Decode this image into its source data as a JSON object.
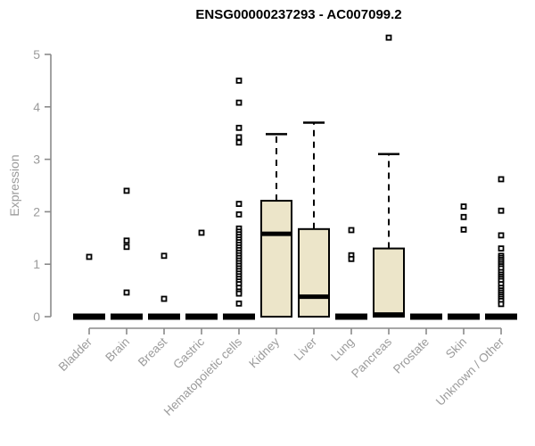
{
  "page": {
    "title": "ENSG00000237293 - AC007099.2"
  },
  "colors": {
    "box_fill": "#ece5c9",
    "box_stroke": "#000000",
    "median": "#000000",
    "axis": "#8a8a8a",
    "tick_label": "#9b9b9b",
    "title": "#000000",
    "outlier_fill": "#ffffff",
    "background": "#ffffff"
  },
  "chart_data": {
    "type": "boxplot",
    "title": "ENSG00000237293 - AC007099.2",
    "xlabel": "",
    "ylabel": "Expression",
    "ylim": [
      0,
      5.45
    ],
    "y_ticks": [
      0,
      1,
      2,
      3,
      4,
      5
    ],
    "grid": false,
    "legend": "none",
    "categories": [
      "Bladder",
      "Brain",
      "Breast",
      "Gastric",
      "Hematopoietic cells",
      "Kidney",
      "Liver",
      "Lung",
      "Pancreas",
      "Prostate",
      "Skin",
      "Unknown / Other"
    ],
    "series": [
      {
        "name": "Bladder",
        "q1": 0,
        "median": 0,
        "q3": 0,
        "whisker_low": 0,
        "whisker_high": 0,
        "outliers": [
          1.14
        ]
      },
      {
        "name": "Brain",
        "q1": 0,
        "median": 0,
        "q3": 0,
        "whisker_low": 0,
        "whisker_high": 0,
        "outliers": [
          2.4,
          1.45,
          1.33,
          0.46
        ]
      },
      {
        "name": "Breast",
        "q1": 0,
        "median": 0,
        "q3": 0,
        "whisker_low": 0,
        "whisker_high": 0,
        "outliers": [
          1.16,
          0.34
        ]
      },
      {
        "name": "Gastric",
        "q1": 0,
        "median": 0,
        "q3": 0,
        "whisker_low": 0,
        "whisker_high": 0,
        "outliers": [
          1.6
        ]
      },
      {
        "name": "Hematopoietic cells",
        "q1": 0,
        "median": 0,
        "q3": 0,
        "whisker_low": 0,
        "whisker_high": 0,
        "outliers": [
          4.5,
          4.08,
          3.6,
          3.42,
          3.32,
          2.15,
          1.95,
          1.68,
          1.62,
          1.57,
          1.52,
          1.47,
          1.42,
          1.37,
          1.32,
          1.27,
          1.22,
          1.17,
          1.12,
          1.07,
          1.02,
          0.97,
          0.92,
          0.87,
          0.82,
          0.77,
          0.72,
          0.67,
          0.62,
          0.55,
          0.48,
          0.44,
          0.25
        ]
      },
      {
        "name": "Kidney",
        "q1": 0,
        "median": 1.58,
        "q3": 2.21,
        "whisker_low": 0,
        "whisker_high": 3.48,
        "outliers": []
      },
      {
        "name": "Liver",
        "q1": 0,
        "median": 0.38,
        "q3": 1.67,
        "whisker_low": 0,
        "whisker_high": 3.7,
        "outliers": []
      },
      {
        "name": "Lung",
        "q1": 0,
        "median": 0,
        "q3": 0,
        "whisker_low": 0,
        "whisker_high": 0,
        "outliers": [
          1.65,
          1.17,
          1.1
        ]
      },
      {
        "name": "Pancreas",
        "q1": 0,
        "median": 0.04,
        "q3": 1.3,
        "whisker_low": 0,
        "whisker_high": 3.1,
        "outliers": [
          5.32
        ]
      },
      {
        "name": "Prostate",
        "q1": 0,
        "median": 0,
        "q3": 0,
        "whisker_low": 0,
        "whisker_high": 0,
        "outliers": []
      },
      {
        "name": "Skin",
        "q1": 0,
        "median": 0,
        "q3": 0,
        "whisker_low": 0,
        "whisker_high": 0,
        "outliers": [
          2.1,
          1.9,
          1.66
        ]
      },
      {
        "name": "Unknown / Other",
        "q1": 0,
        "median": 0,
        "q3": 0,
        "whisker_low": 0,
        "whisker_high": 0,
        "outliers": [
          2.62,
          2.02,
          1.55,
          1.3,
          1.16,
          1.12,
          1.08,
          1.04,
          1.0,
          0.96,
          0.92,
          0.85,
          0.8,
          0.76,
          0.72,
          0.68,
          0.62,
          0.55,
          0.5,
          0.46,
          0.42,
          0.38,
          0.34,
          0.3,
          0.24
        ]
      }
    ]
  }
}
